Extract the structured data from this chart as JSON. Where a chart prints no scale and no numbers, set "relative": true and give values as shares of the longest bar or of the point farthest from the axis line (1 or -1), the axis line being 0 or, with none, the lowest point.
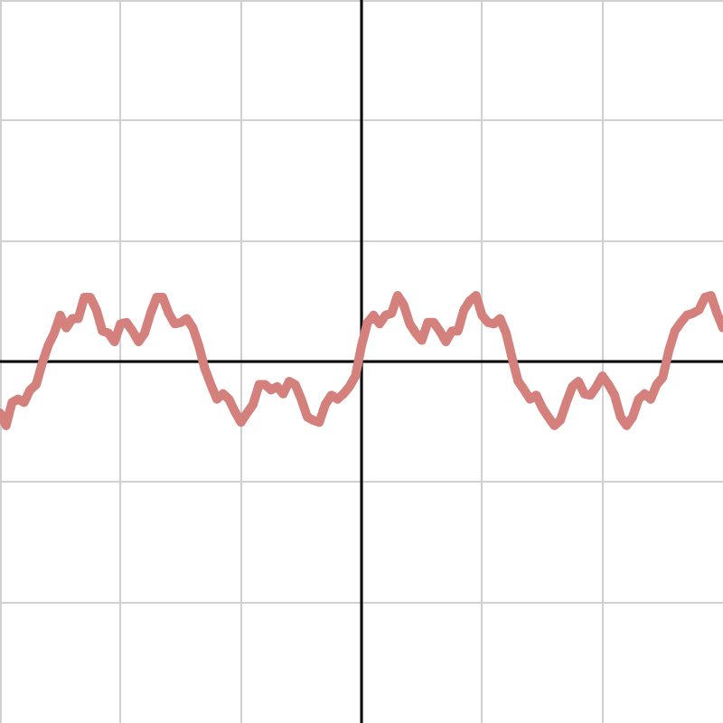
{
  "chart_data": {
    "type": "line",
    "relative": true,
    "grid": true,
    "tick_labels": false,
    "line_style": "solid",
    "categories": [
      null,
      null,
      null,
      null,
      null,
      null,
      null,
      null,
      null,
      null,
      null,
      null,
      null,
      null,
      null,
      null,
      null,
      null,
      null,
      null,
      null,
      null,
      null,
      null,
      null,
      null,
      null,
      null,
      null,
      null,
      null,
      null,
      null,
      null,
      null,
      null,
      null,
      null,
      null,
      null,
      null,
      null,
      null,
      null,
      null,
      null,
      null,
      null,
      null,
      null,
      null,
      null,
      null,
      null,
      null,
      null,
      null,
      null,
      null,
      null,
      null,
      null,
      null,
      null,
      null,
      null,
      null,
      null,
      null,
      null,
      null,
      null,
      null,
      null,
      null,
      null,
      null,
      null,
      null,
      null,
      null,
      null,
      null,
      null,
      null,
      null,
      null,
      null,
      null,
      null,
      null,
      null,
      null,
      null,
      null,
      null,
      null,
      null,
      null,
      null,
      null,
      null,
      null,
      null,
      null,
      null,
      null,
      null,
      null,
      null,
      null,
      null,
      null,
      null,
      null,
      null,
      null,
      null,
      null,
      null,
      null
    ],
    "series": [
      {
        "color": "#d4807c",
        "values": [
          -0.78,
          -0.97,
          -0.62,
          -0.57,
          -0.62,
          -0.43,
          -0.35,
          -0.03,
          0.24,
          0.43,
          0.7,
          0.51,
          0.65,
          0.65,
          0.97,
          0.97,
          0.78,
          0.46,
          0.43,
          0.3,
          0.57,
          0.59,
          0.46,
          0.3,
          0.43,
          0.73,
          0.97,
          0.97,
          0.73,
          0.57,
          0.59,
          0.65,
          0.51,
          0.24,
          -0.11,
          -0.35,
          -0.57,
          -0.49,
          -0.57,
          -0.76,
          -0.92,
          -0.78,
          -0.65,
          -0.35,
          -0.35,
          -0.43,
          -0.38,
          -0.49,
          -0.3,
          -0.35,
          -0.57,
          -0.84,
          -0.89,
          -0.92,
          -0.65,
          -0.51,
          -0.57,
          -0.49,
          -0.38,
          -0.22,
          0.24,
          0.59,
          0.7,
          0.57,
          0.7,
          0.73,
          1,
          0.86,
          0.57,
          0.43,
          0.32,
          0.59,
          0.59,
          0.46,
          0.3,
          0.46,
          0.46,
          0.78,
          0.92,
          1,
          0.7,
          0.59,
          0.57,
          0.65,
          0.43,
          0.05,
          -0.3,
          -0.43,
          -0.57,
          -0.51,
          -0.7,
          -0.84,
          -0.97,
          -0.89,
          -0.62,
          -0.38,
          -0.3,
          -0.49,
          -0.51,
          -0.38,
          -0.22,
          -0.35,
          -0.51,
          -0.84,
          -0.97,
          -0.84,
          -0.57,
          -0.49,
          -0.57,
          -0.35,
          -0.24,
          0.16,
          0.46,
          0.59,
          0.7,
          0.73,
          0.78,
          0.97,
          1,
          0.73,
          0.51
        ]
      }
    ]
  }
}
